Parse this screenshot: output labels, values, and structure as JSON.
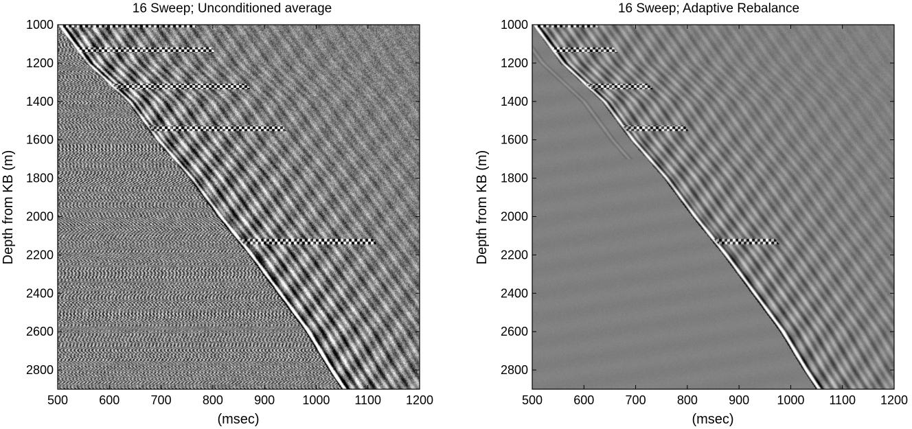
{
  "chart_data": [
    {
      "type": "heatmap",
      "subtype": "seismic-wiggle-density",
      "title": "16 Sweep; Unconditioned average",
      "xlabel": "(msec)",
      "ylabel": "Depth from KB (m)",
      "xlim": [
        500,
        1200
      ],
      "ylim": [
        1000,
        2900
      ],
      "y_reversed": true,
      "xticks": [
        500,
        600,
        700,
        800,
        900,
        1000,
        1100,
        1200
      ],
      "yticks": [
        1000,
        1200,
        1400,
        1600,
        1800,
        2000,
        2200,
        2400,
        2600,
        2800
      ],
      "colormap": "gray",
      "first_break": {
        "depth": [
          1000,
          1200,
          1400,
          1600,
          1800,
          2000,
          2200,
          2400,
          2600,
          2800,
          2900
        ],
        "time": [
          505,
          560,
          640,
          695,
          760,
          815,
          875,
          930,
          985,
          1030,
          1055
        ]
      },
      "noise_level": "high"
    },
    {
      "type": "heatmap",
      "subtype": "seismic-wiggle-density",
      "title": "16 Sweep; Adaptive Rebalance",
      "xlabel": "(msec)",
      "ylabel": "Depth from KB (m)",
      "xlim": [
        500,
        1200
      ],
      "ylim": [
        1000,
        2900
      ],
      "y_reversed": true,
      "xticks": [
        500,
        600,
        700,
        800,
        900,
        1000,
        1100,
        1200
      ],
      "yticks": [
        1000,
        1200,
        1400,
        1600,
        1800,
        2000,
        2200,
        2400,
        2600,
        2800
      ],
      "colormap": "gray",
      "first_break": {
        "depth": [
          1000,
          1200,
          1400,
          1600,
          1800,
          2000,
          2200,
          2400,
          2600,
          2800,
          2900
        ],
        "time": [
          505,
          560,
          640,
          695,
          760,
          815,
          875,
          930,
          985,
          1030,
          1055
        ]
      },
      "noise_level": "low"
    }
  ]
}
